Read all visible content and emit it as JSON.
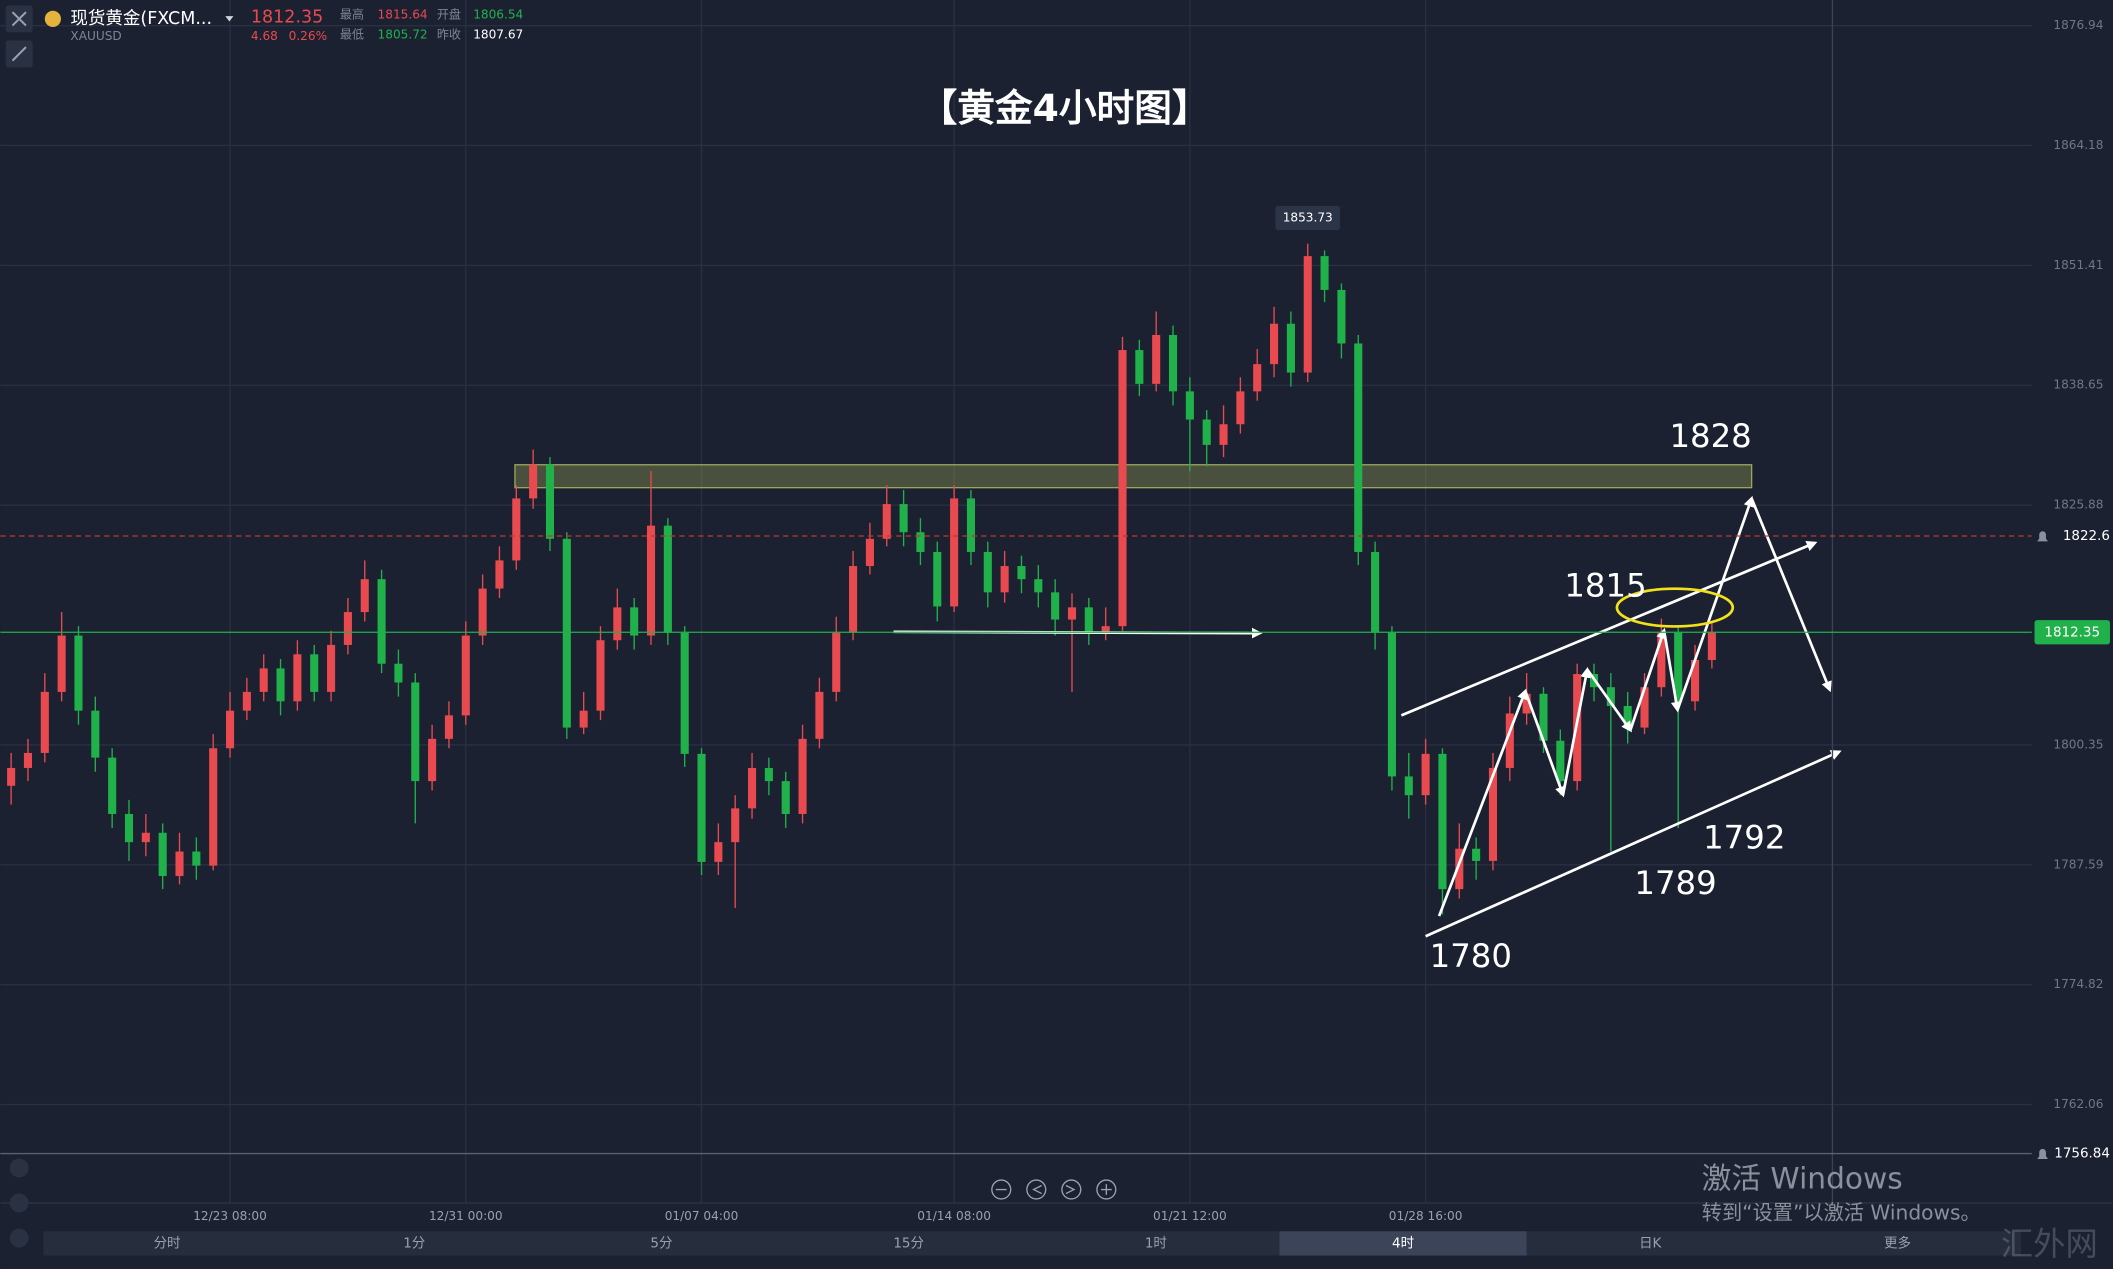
{
  "header": {
    "name": "现货黄金(FXCM...",
    "symbol": "XAUUSD",
    "price": "1812.35",
    "change": "4.68",
    "change_pct": "0.26%",
    "stats": [
      {
        "label": "最高",
        "value": "1815.64"
      },
      {
        "label": "开盘",
        "value": "1806.54"
      },
      {
        "label": "最低",
        "value": "1805.72"
      },
      {
        "label": "昨收",
        "value": "1807.67"
      }
    ]
  },
  "chart_data": {
    "type": "candlestick",
    "title": "【黄金4小时图】",
    "categories": [
      null,
      null,
      null,
      null,
      null,
      null,
      null,
      null,
      null,
      null,
      null,
      null,
      null,
      "12/23 08:00",
      null,
      null,
      null,
      null,
      null,
      null,
      null,
      null,
      null,
      null,
      null,
      null,
      null,
      "12/31 00:00",
      null,
      null,
      null,
      null,
      null,
      null,
      null,
      null,
      null,
      null,
      null,
      null,
      null,
      "01/07 04:00",
      null,
      null,
      null,
      null,
      null,
      null,
      null,
      null,
      null,
      null,
      null,
      null,
      null,
      null,
      "01/14 08:00",
      null,
      null,
      null,
      null,
      null,
      null,
      null,
      null,
      null,
      null,
      null,
      null,
      null,
      "01/21 12:00",
      null,
      null,
      null,
      null,
      null,
      null,
      null,
      null,
      null,
      null,
      null,
      null,
      null,
      "01/28 16:00",
      null,
      null,
      null,
      null,
      null,
      null,
      null,
      null,
      null,
      null,
      null,
      null,
      null,
      null,
      null,
      null,
      null
    ],
    "open": [
      1796.0,
      1797.9,
      1799.5,
      1806.0,
      1812.0,
      1804.0,
      1799.0,
      1793.0,
      1790.0,
      1791.0,
      1786.4,
      1789.0,
      1787.5,
      1800.0,
      1804.0,
      1806.0,
      1808.5,
      1805.0,
      1810.0,
      1806.0,
      1811.0,
      1814.5,
      1818.0,
      1809.0,
      1807.0,
      1796.5,
      1801.0,
      1803.5,
      1812.0,
      1817.0,
      1820.0,
      1826.6,
      1830.2,
      1822.3,
      1802.2,
      1804.0,
      1811.5,
      1815.0,
      1812.0,
      1823.7,
      1812.3,
      1799.4,
      1787.9,
      1790.0,
      1793.6,
      1797.9,
      1796.5,
      1793.0,
      1801.0,
      1806.0,
      1812.3,
      1819.4,
      1822.3,
      1826.0,
      1823.0,
      1820.9,
      1815.1,
      1826.6,
      1820.9,
      1816.6,
      1819.4,
      1818.0,
      1816.6,
      1813.7,
      1815.0,
      1812.3,
      1813.0,
      1842.4,
      1838.8,
      1844.0,
      1838.0,
      1835.0,
      1832.3,
      1834.5,
      1838.0,
      1840.9,
      1845.2,
      1840.0,
      1852.4,
      1848.8,
      1843.1,
      1820.9,
      1812.3,
      1797.0,
      1795.0,
      1799.4,
      1785.0,
      1789.3,
      1788.0,
      1797.9,
      1803.7,
      1805.8,
      1800.8,
      1796.5,
      1807.9,
      1806.5,
      1804.5,
      1802.2,
      1806.5,
      1812.3,
      1805.0,
      1809.4
    ],
    "high": [
      1799.5,
      1801.0,
      1808.0,
      1814.5,
      1813.0,
      1805.5,
      1800.0,
      1794.5,
      1793.0,
      1792.0,
      1791.0,
      1790.5,
      1801.5,
      1806.0,
      1807.5,
      1810.0,
      1809.5,
      1811.5,
      1811.0,
      1812.5,
      1816.0,
      1820.0,
      1819.0,
      1810.5,
      1808.0,
      1802.5,
      1805.0,
      1813.5,
      1818.5,
      1821.5,
      1828.0,
      1831.8,
      1831.0,
      1823.0,
      1806.0,
      1813.0,
      1817.0,
      1816.0,
      1829.5,
      1824.5,
      1813.0,
      1800.0,
      1792.0,
      1795.0,
      1799.5,
      1799.0,
      1797.5,
      1802.5,
      1807.5,
      1814.0,
      1821.0,
      1824.0,
      1828.0,
      1827.5,
      1824.5,
      1822.0,
      1828.0,
      1827.5,
      1822.0,
      1821.0,
      1820.5,
      1819.5,
      1818.0,
      1816.5,
      1816.0,
      1815.0,
      1843.8,
      1843.5,
      1846.5,
      1845.0,
      1839.5,
      1836.0,
      1836.5,
      1839.5,
      1842.5,
      1847.0,
      1846.5,
      1853.73,
      1853.0,
      1849.5,
      1844.0,
      1822.0,
      1813.0,
      1799.5,
      1801.0,
      1800.0,
      1792.0,
      1790.5,
      1799.5,
      1805.5,
      1808.0,
      1806.5,
      1802.0,
      1809.0,
      1809.0,
      1808.0,
      1806.0,
      1808.0,
      1813.8,
      1813.0,
      1811.0,
      1813.5
    ],
    "low": [
      1794.0,
      1796.5,
      1798.5,
      1805.0,
      1802.5,
      1797.5,
      1791.5,
      1788.0,
      1788.5,
      1785.0,
      1785.5,
      1786.0,
      1787.0,
      1799.0,
      1803.0,
      1805.0,
      1803.5,
      1804.0,
      1805.0,
      1805.0,
      1810.0,
      1813.5,
      1808.0,
      1805.5,
      1792.0,
      1795.5,
      1800.0,
      1802.5,
      1811.0,
      1816.0,
      1819.0,
      1825.5,
      1821.0,
      1801.0,
      1801.5,
      1803.0,
      1810.5,
      1810.5,
      1811.0,
      1811.0,
      1798.0,
      1786.5,
      1786.5,
      1783.0,
      1792.5,
      1795.0,
      1791.5,
      1792.0,
      1800.0,
      1805.0,
      1811.5,
      1818.5,
      1821.5,
      1821.5,
      1819.5,
      1813.5,
      1814.5,
      1819.5,
      1815.0,
      1815.5,
      1816.5,
      1815.0,
      1812.0,
      1806.0,
      1811.0,
      1811.5,
      1812.5,
      1837.5,
      1838.0,
      1836.5,
      1829.5,
      1830.0,
      1831.0,
      1833.5,
      1837.0,
      1839.5,
      1838.5,
      1839.0,
      1847.5,
      1841.5,
      1819.5,
      1810.5,
      1795.5,
      1792.5,
      1794.0,
      1782.3,
      1784.0,
      1786.0,
      1787.0,
      1796.5,
      1802.5,
      1799.5,
      1795.0,
      1795.5,
      1805.0,
      1789.0,
      1800.5,
      1801.5,
      1805.5,
      1791.5,
      1804.0,
      1808.5
    ],
    "close": [
      1797.9,
      1799.5,
      1806.0,
      1812.0,
      1804.0,
      1799.0,
      1793.0,
      1790.0,
      1791.0,
      1786.4,
      1789.0,
      1787.5,
      1800.0,
      1804.0,
      1806.0,
      1808.5,
      1805.0,
      1810.0,
      1806.0,
      1811.0,
      1814.5,
      1818.0,
      1809.0,
      1807.0,
      1796.5,
      1801.0,
      1803.5,
      1812.0,
      1817.0,
      1820.0,
      1826.6,
      1830.2,
      1822.3,
      1802.2,
      1804.0,
      1811.5,
      1815.0,
      1812.0,
      1823.7,
      1812.3,
      1799.4,
      1787.9,
      1790.0,
      1793.6,
      1797.9,
      1796.5,
      1793.0,
      1801.0,
      1806.0,
      1812.3,
      1819.4,
      1822.3,
      1826.0,
      1823.0,
      1820.9,
      1815.1,
      1826.6,
      1820.9,
      1816.6,
      1819.4,
      1818.0,
      1816.6,
      1813.7,
      1815.0,
      1812.3,
      1813.0,
      1842.4,
      1838.8,
      1844.0,
      1838.0,
      1835.0,
      1832.3,
      1834.5,
      1838.0,
      1840.9,
      1845.2,
      1840.0,
      1852.4,
      1848.8,
      1843.1,
      1820.9,
      1812.3,
      1797.0,
      1795.0,
      1799.4,
      1785.0,
      1789.3,
      1788.0,
      1797.9,
      1803.7,
      1805.8,
      1800.8,
      1796.5,
      1807.9,
      1806.5,
      1804.5,
      1802.2,
      1806.5,
      1812.3,
      1805.0,
      1809.4,
      1812.35
    ],
    "up_color": "#e84a4f",
    "down_color": "#21b14b",
    "ylim": [
      1751.58,
      1879.67
    ],
    "yticks": [
      1762.06,
      1774.82,
      1787.59,
      1800.35,
      1825.88,
      1838.65,
      1851.41,
      1864.18,
      1876.94
    ],
    "grid": true,
    "price_lines": [
      {
        "value": 1812.35,
        "color": "#21b14b"
      },
      {
        "value": 1822.6,
        "color": "#c0392b",
        "dashed": true
      },
      {
        "value": 1756.84,
        "color": "#5a6272"
      }
    ],
    "max_marker": 77,
    "annotations": [
      1828,
      1815,
      1792,
      1789,
      1780
    ]
  },
  "tabs": [
    "分时",
    "1分",
    "5分",
    "15分",
    "1时",
    "4时",
    "日K",
    "更多"
  ],
  "active_tab": 5,
  "overlay": {
    "activate": "激活 Windows",
    "hint": "转到“设置”以激活 Windows。",
    "watermark": "汇外网"
  }
}
